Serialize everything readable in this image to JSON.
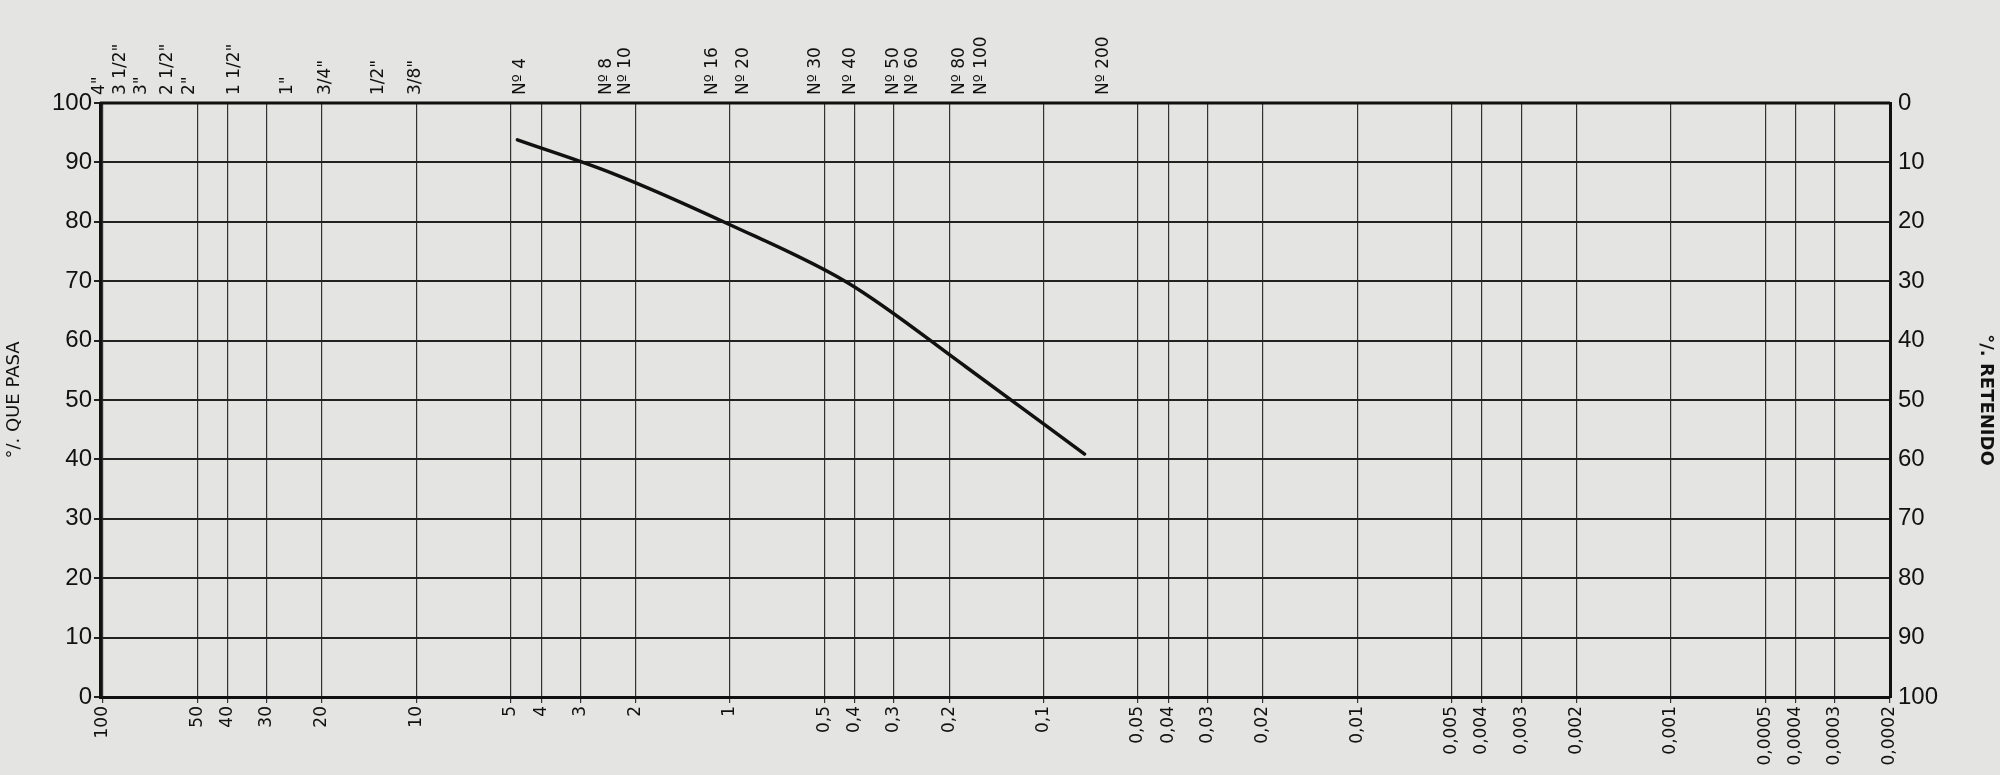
{
  "chart_data": {
    "type": "line",
    "ylabel": "°/. QUE PASA",
    "y2label": "°/. RETENIDO",
    "x": [
      4.76,
      2.38,
      1.0,
      0.42,
      0.177,
      0.074
    ],
    "series": [
      {
        "color": "#111111",
        "values": [
          93.8,
          88.2,
          79.5,
          69.7,
          55.6,
          40.9
        ]
      }
    ],
    "xlim": [
      102,
      0.0002
    ],
    "xticks": [
      100,
      50,
      40,
      30,
      20,
      10,
      5,
      4,
      3,
      2,
      1,
      {
        "value": 0.5,
        "label": "0,5"
      },
      {
        "value": 0.4,
        "label": "0,4"
      },
      {
        "value": 0.3,
        "label": "0,3"
      },
      {
        "value": 0.2,
        "label": "0,2"
      },
      {
        "value": 0.1,
        "label": "0,1"
      },
      {
        "value": 0.05,
        "label": "0,05"
      },
      {
        "value": 0.04,
        "label": "0,04"
      },
      {
        "value": 0.03,
        "label": "0,03"
      },
      {
        "value": 0.02,
        "label": "0,02"
      },
      {
        "value": 0.01,
        "label": "0,01"
      },
      {
        "value": 0.005,
        "label": "0,005"
      },
      {
        "value": 0.004,
        "label": "0,004"
      },
      {
        "value": 0.003,
        "label": "0,003"
      },
      {
        "value": 0.002,
        "label": "0,002"
      },
      {
        "value": 0.001,
        "label": "0,001"
      },
      {
        "value": 0.0005,
        "label": "0,0005"
      },
      {
        "value": 0.0004,
        "label": "0,0004"
      },
      {
        "value": 0.0003,
        "label": "0,0003"
      },
      {
        "value": 0.0002,
        "label": "0,0002"
      }
    ],
    "annotations": [
      "4\"",
      "3 1/2\"",
      "3\"",
      "2 1/2\"",
      "2\"",
      "1 1/2\"",
      "1\"",
      "3/4\"",
      "1/2\"",
      "3/8\"",
      "Nº 4",
      "Nº 8",
      "Nº 10",
      "Nº 16",
      "Nº 20",
      "Nº 30",
      "Nº 40",
      "Nº 50",
      "Nº 60",
      "Nº 80",
      "Nº 100",
      "Nº 200"
    ],
    "log": "x",
    "ylim": [
      0,
      100
    ],
    "yticks": [
      0,
      10,
      20,
      30,
      40,
      50,
      60,
      70,
      80,
      90,
      100
    ],
    "y2lim": [
      100,
      0
    ],
    "y2ticks": [
      0,
      10,
      20,
      30,
      40,
      50,
      60,
      70,
      80,
      90,
      100
    ],
    "grid": true,
    "legend": false,
    "marker": "none",
    "line_style": "solid"
  }
}
